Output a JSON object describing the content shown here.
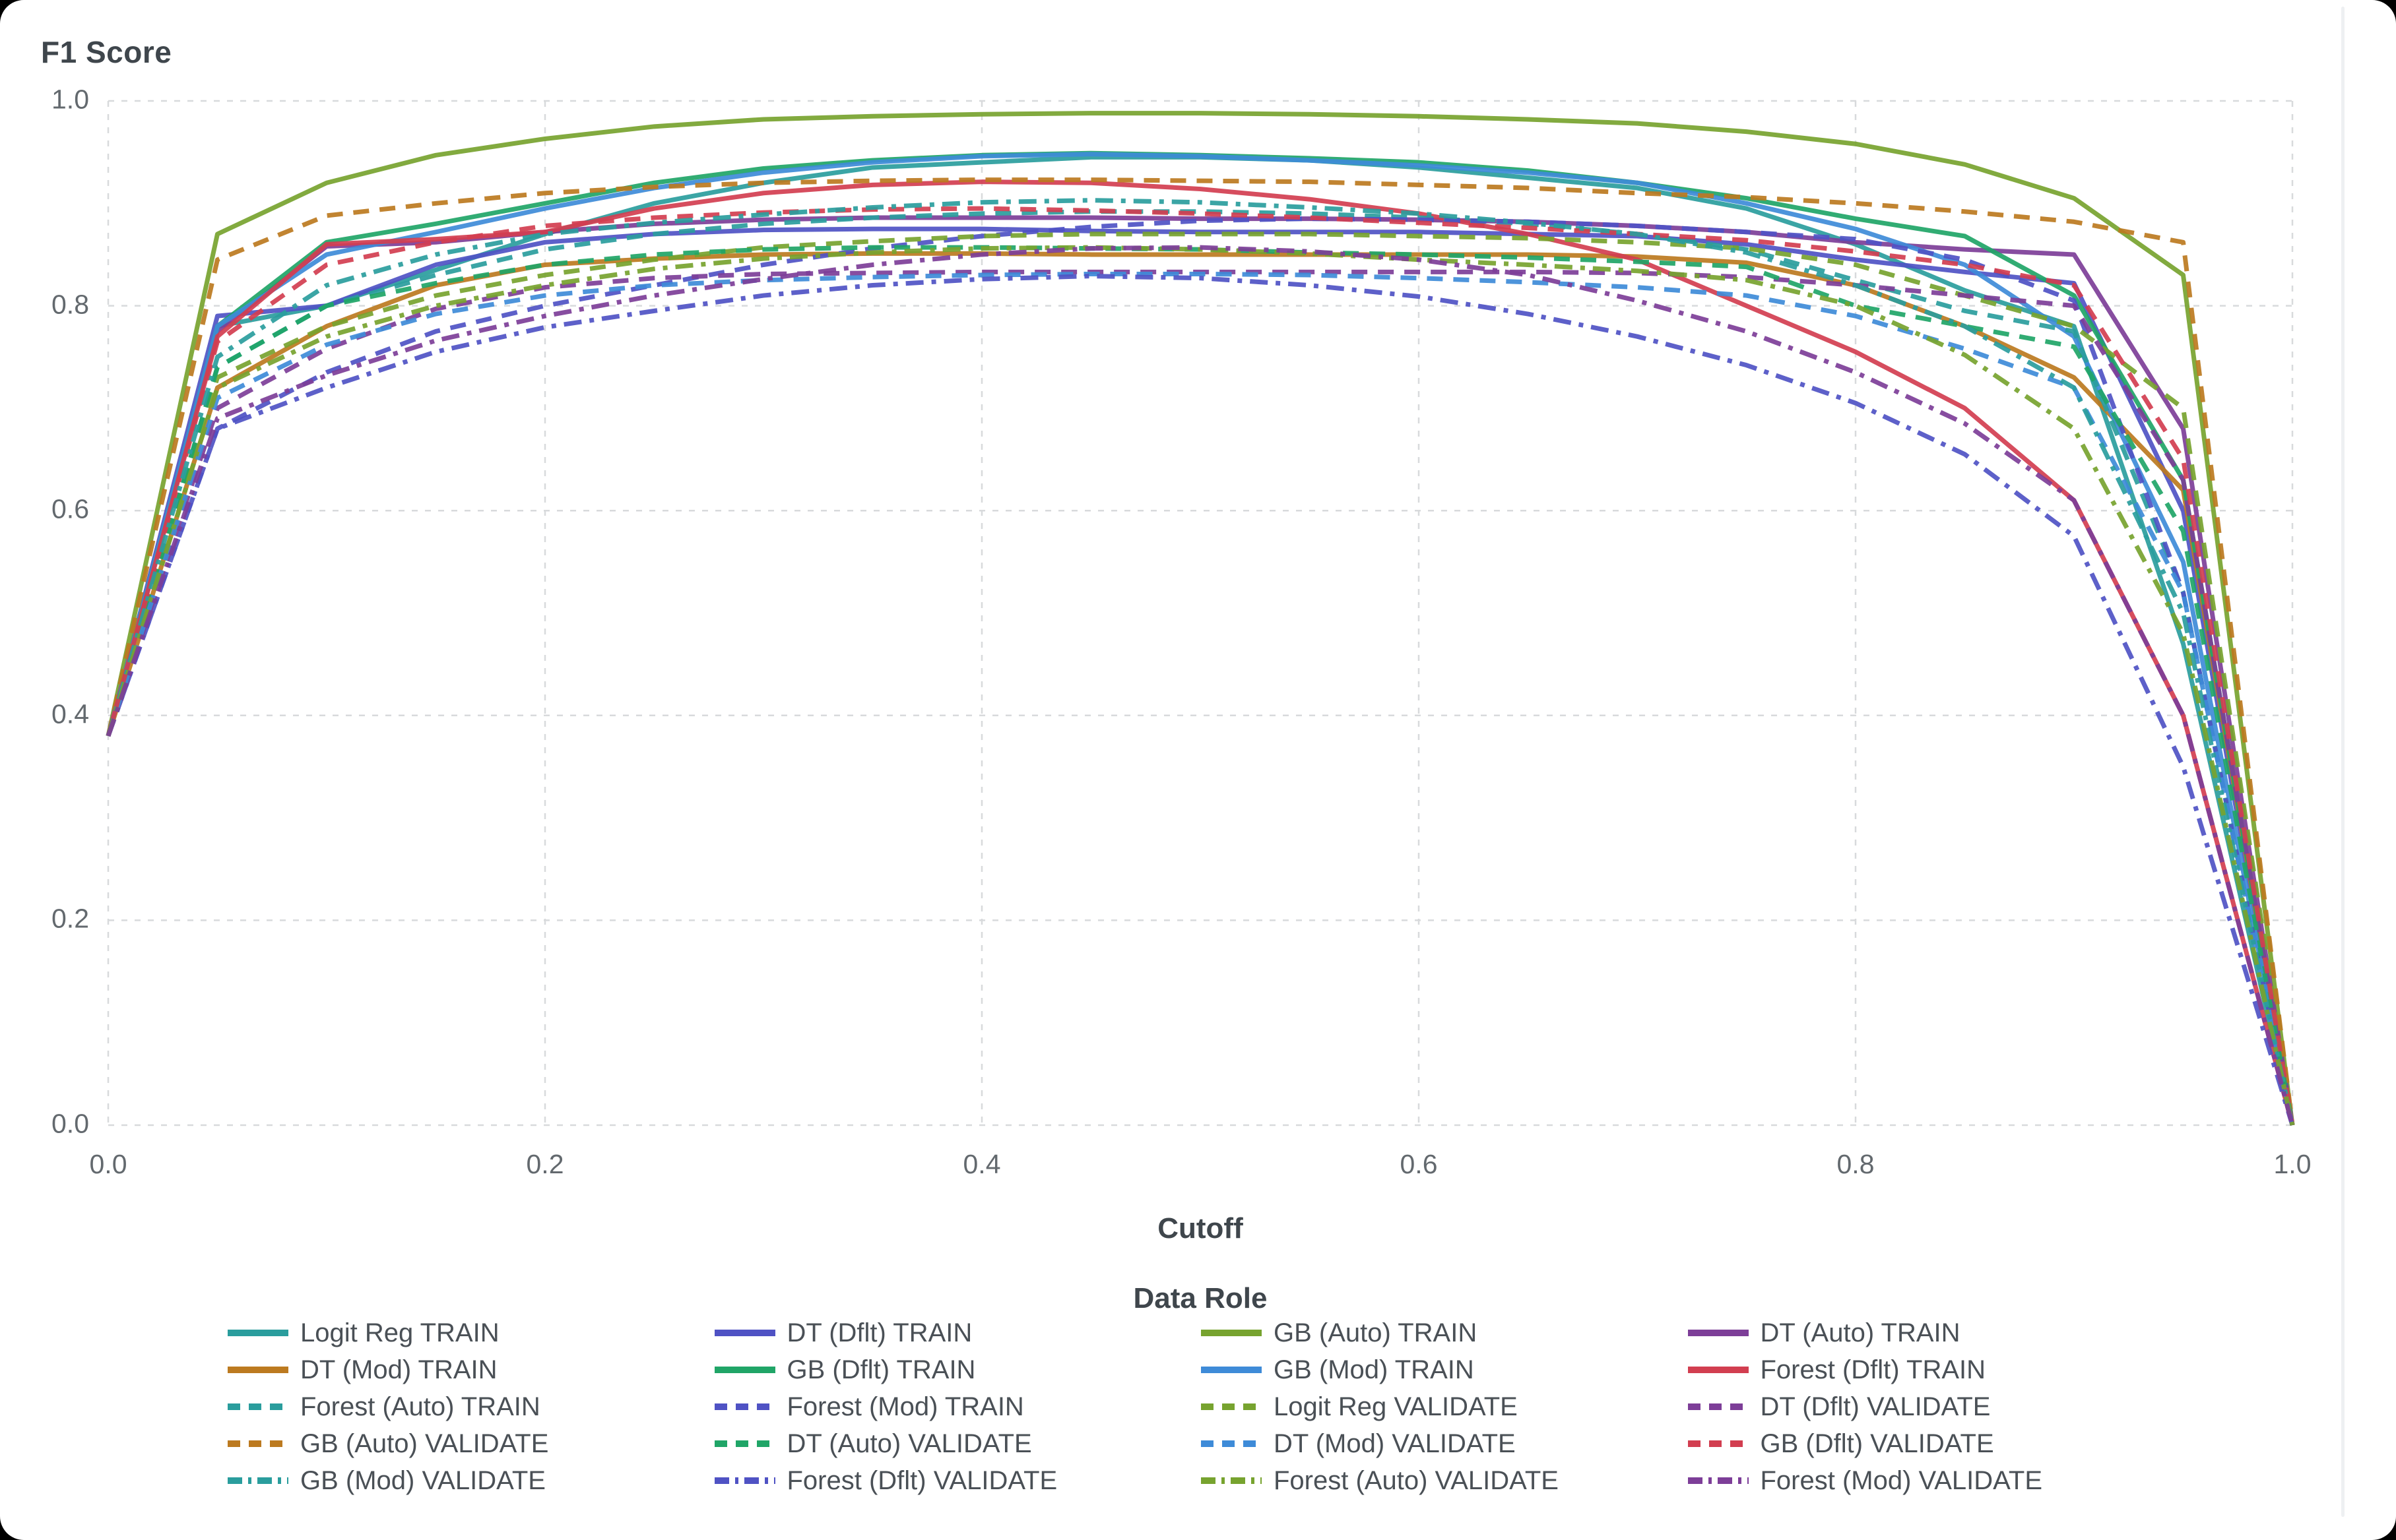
{
  "title": "F1 Score",
  "x_axis": {
    "label": "Cutoff",
    "ticks": [
      "0.0",
      "0.2",
      "0.4",
      "0.6",
      "0.8",
      "1.0"
    ]
  },
  "y_axis": {
    "ticks": [
      "0.0",
      "0.2",
      "0.4",
      "0.6",
      "0.8",
      "1.0"
    ]
  },
  "legend": {
    "title": "Data Role"
  },
  "style": {
    "grid_color": "#d8dadc",
    "text_color": "#4a5056",
    "tick_color": "#63696e",
    "title_color": "#3f464c",
    "palette": {
      "teal": "#2A9D9D",
      "indigo": "#4F52C4",
      "olive": "#77A32F",
      "purple": "#7D3E98",
      "ochre": "#BC7A20",
      "emerald": "#20A567",
      "azure": "#3E8BD8",
      "crimson": "#D23E50"
    }
  },
  "chart_data": {
    "type": "line",
    "title": "F1 Score",
    "xlabel": "Cutoff",
    "ylabel": "F1 Score",
    "legend_title": "Data Role",
    "xlim": [
      0.0,
      1.0
    ],
    "ylim": [
      0.0,
      1.0
    ],
    "x_tick_values": [
      0.0,
      0.2,
      0.4,
      0.6,
      0.8,
      1.0
    ],
    "y_tick_values": [
      0.0,
      0.2,
      0.4,
      0.6,
      0.8,
      1.0
    ],
    "grid": "dashed, both axes",
    "legend_position": "bottom, 4 columns, row-major",
    "x": [
      0,
      0.05,
      0.1,
      0.15,
      0.2,
      0.25,
      0.3,
      0.35,
      0.4,
      0.45,
      0.5,
      0.55,
      0.6,
      0.65,
      0.7,
      0.75,
      0.8,
      0.85,
      0.9,
      0.95,
      1.0
    ],
    "series": [
      {
        "name": "Logit Reg TRAIN",
        "color": "#2A9D9D",
        "dash": "solid",
        "values": [
          0.38,
          0.78,
          0.8,
          0.835,
          0.87,
          0.9,
          0.92,
          0.935,
          0.94,
          0.945,
          0.945,
          0.942,
          0.935,
          0.925,
          0.915,
          0.895,
          0.86,
          0.815,
          0.78,
          0.47,
          0
        ]
      },
      {
        "name": "DT (Dflt) TRAIN",
        "color": "#4F52C4",
        "dash": "solid",
        "values": [
          0.38,
          0.79,
          0.8,
          0.84,
          0.862,
          0.87,
          0.874,
          0.875,
          0.875,
          0.873,
          0.872,
          0.872,
          0.872,
          0.87,
          0.868,
          0.86,
          0.845,
          0.833,
          0.822,
          0.6,
          0
        ]
      },
      {
        "name": "GB (Auto) TRAIN",
        "color": "#77A32F",
        "dash": "solid",
        "values": [
          0.38,
          0.87,
          0.92,
          0.947,
          0.963,
          0.975,
          0.982,
          0.985,
          0.987,
          0.988,
          0.988,
          0.987,
          0.985,
          0.982,
          0.978,
          0.97,
          0.958,
          0.938,
          0.905,
          0.83,
          0
        ]
      },
      {
        "name": "DT (Auto) TRAIN",
        "color": "#7D3E98",
        "dash": "solid",
        "values": [
          0.38,
          0.775,
          0.858,
          0.862,
          0.872,
          0.88,
          0.884,
          0.886,
          0.886,
          0.886,
          0.885,
          0.885,
          0.884,
          0.882,
          0.878,
          0.872,
          0.862,
          0.855,
          0.85,
          0.68,
          0
        ]
      },
      {
        "name": "DT (Mod) TRAIN",
        "color": "#BC7A20",
        "dash": "solid",
        "values": [
          0.38,
          0.72,
          0.78,
          0.82,
          0.84,
          0.846,
          0.85,
          0.851,
          0.851,
          0.85,
          0.85,
          0.85,
          0.85,
          0.85,
          0.848,
          0.842,
          0.82,
          0.78,
          0.73,
          0.62,
          0
        ]
      },
      {
        "name": "GB (Dflt) TRAIN",
        "color": "#20A567",
        "dash": "solid",
        "values": [
          0.38,
          0.78,
          0.862,
          0.88,
          0.9,
          0.92,
          0.934,
          0.942,
          0.947,
          0.949,
          0.947,
          0.944,
          0.94,
          0.932,
          0.92,
          0.905,
          0.885,
          0.868,
          0.81,
          0.63,
          0
        ]
      },
      {
        "name": "GB (Mod) TRAIN",
        "color": "#3E8BD8",
        "dash": "solid",
        "values": [
          0.38,
          0.78,
          0.85,
          0.872,
          0.895,
          0.915,
          0.93,
          0.94,
          0.946,
          0.948,
          0.946,
          0.942,
          0.937,
          0.93,
          0.92,
          0.9,
          0.875,
          0.84,
          0.77,
          0.55,
          0
        ]
      },
      {
        "name": "Forest (Dflt) TRAIN",
        "color": "#D23E50",
        "dash": "solid",
        "values": [
          0.38,
          0.77,
          0.86,
          0.865,
          0.872,
          0.895,
          0.91,
          0.918,
          0.921,
          0.92,
          0.914,
          0.904,
          0.89,
          0.87,
          0.845,
          0.8,
          0.755,
          0.7,
          0.61,
          0.4,
          0
        ]
      },
      {
        "name": "Forest (Auto) TRAIN",
        "color": "#2A9D9D",
        "dash": "dashed",
        "values": [
          0.38,
          0.74,
          0.8,
          0.83,
          0.855,
          0.87,
          0.88,
          0.886,
          0.89,
          0.892,
          0.892,
          0.89,
          0.886,
          0.88,
          0.87,
          0.855,
          0.825,
          0.795,
          0.775,
          0.52,
          0
        ]
      },
      {
        "name": "Forest (Mod) TRAIN",
        "color": "#4F52C4",
        "dash": "dashed",
        "values": [
          0.38,
          0.68,
          0.735,
          0.775,
          0.8,
          0.82,
          0.84,
          0.856,
          0.868,
          0.877,
          0.883,
          0.885,
          0.884,
          0.882,
          0.878,
          0.872,
          0.865,
          0.845,
          0.805,
          0.52,
          0
        ]
      },
      {
        "name": "Logit Reg VALIDATE",
        "color": "#77A32F",
        "dash": "dashed",
        "values": [
          0.38,
          0.73,
          0.78,
          0.81,
          0.83,
          0.845,
          0.857,
          0.863,
          0.868,
          0.87,
          0.87,
          0.87,
          0.868,
          0.866,
          0.862,
          0.856,
          0.84,
          0.81,
          0.78,
          0.7,
          0
        ]
      },
      {
        "name": "DT (Dflt) VALIDATE",
        "color": "#7D3E98",
        "dash": "dashed",
        "values": [
          0.38,
          0.7,
          0.758,
          0.797,
          0.818,
          0.827,
          0.831,
          0.832,
          0.833,
          0.833,
          0.833,
          0.833,
          0.833,
          0.833,
          0.832,
          0.828,
          0.82,
          0.81,
          0.8,
          0.63,
          0
        ]
      },
      {
        "name": "GB (Auto) VALIDATE",
        "color": "#BC7A20",
        "dash": "dashed",
        "values": [
          0.38,
          0.845,
          0.888,
          0.9,
          0.91,
          0.916,
          0.92,
          0.922,
          0.923,
          0.923,
          0.922,
          0.921,
          0.918,
          0.915,
          0.91,
          0.906,
          0.9,
          0.892,
          0.882,
          0.862,
          0
        ]
      },
      {
        "name": "DT (Auto) VALIDATE",
        "color": "#20A567",
        "dash": "dashed",
        "values": [
          0.38,
          0.74,
          0.8,
          0.822,
          0.84,
          0.85,
          0.855,
          0.857,
          0.857,
          0.856,
          0.855,
          0.852,
          0.85,
          0.847,
          0.843,
          0.838,
          0.8,
          0.78,
          0.76,
          0.58,
          0
        ]
      },
      {
        "name": "DT (Mod) VALIDATE",
        "color": "#3E8BD8",
        "dash": "dashed",
        "values": [
          0.38,
          0.71,
          0.762,
          0.792,
          0.81,
          0.82,
          0.825,
          0.828,
          0.83,
          0.831,
          0.831,
          0.83,
          0.827,
          0.823,
          0.818,
          0.81,
          0.79,
          0.758,
          0.72,
          0.52,
          0
        ]
      },
      {
        "name": "GB (Dflt) VALIDATE",
        "color": "#D23E50",
        "dash": "dashed",
        "values": [
          0.38,
          0.765,
          0.84,
          0.862,
          0.878,
          0.886,
          0.891,
          0.894,
          0.895,
          0.893,
          0.89,
          0.886,
          0.881,
          0.876,
          0.87,
          0.864,
          0.853,
          0.84,
          0.82,
          0.65,
          0
        ]
      },
      {
        "name": "GB (Mod) VALIDATE",
        "color": "#2A9D9D",
        "dash": "dashdot",
        "values": [
          0.38,
          0.75,
          0.82,
          0.85,
          0.87,
          0.881,
          0.889,
          0.896,
          0.901,
          0.903,
          0.901,
          0.896,
          0.89,
          0.881,
          0.87,
          0.852,
          0.82,
          0.78,
          0.72,
          0.5,
          0
        ]
      },
      {
        "name": "Forest (Dflt) VALIDATE",
        "color": "#4F52C4",
        "dash": "dashdot",
        "values": [
          0.38,
          0.68,
          0.72,
          0.755,
          0.779,
          0.795,
          0.81,
          0.82,
          0.826,
          0.829,
          0.827,
          0.82,
          0.809,
          0.792,
          0.77,
          0.742,
          0.705,
          0.655,
          0.575,
          0.35,
          0
        ]
      },
      {
        "name": "Forest (Auto) VALIDATE",
        "color": "#77A32F",
        "dash": "dashdot",
        "values": [
          0.38,
          0.72,
          0.77,
          0.8,
          0.82,
          0.836,
          0.846,
          0.852,
          0.856,
          0.857,
          0.855,
          0.851,
          0.845,
          0.84,
          0.834,
          0.825,
          0.8,
          0.752,
          0.68,
          0.48,
          0
        ]
      },
      {
        "name": "Forest (Mod) VALIDATE",
        "color": "#7D3E98",
        "dash": "dashdot",
        "values": [
          0.38,
          0.69,
          0.732,
          0.766,
          0.79,
          0.81,
          0.826,
          0.84,
          0.85,
          0.856,
          0.857,
          0.853,
          0.845,
          0.83,
          0.805,
          0.775,
          0.735,
          0.685,
          0.61,
          0.4,
          0
        ]
      }
    ]
  }
}
